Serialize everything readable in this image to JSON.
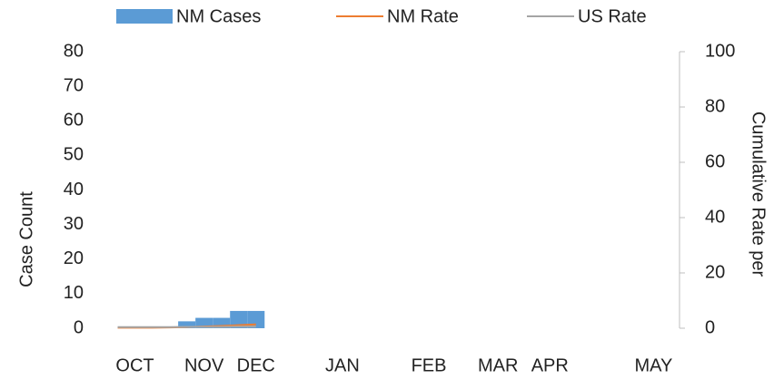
{
  "chart_data": {
    "type": "bar_line",
    "y_label": "Case Count",
    "y2_label": "Cumulative Rate per",
    "categories": [
      null,
      "OCT",
      null,
      null,
      null,
      "NOV",
      null,
      null,
      "DEC",
      null,
      null,
      null,
      null,
      "JAN",
      null,
      null,
      null,
      null,
      "FEB",
      null,
      null,
      null,
      "MAR",
      null,
      null,
      "APR",
      null,
      null,
      null,
      null,
      null,
      "MAY",
      null
    ],
    "series": [
      {
        "name": "NM Cases",
        "type": "bar",
        "color": "#5b9bd5",
        "values": [
          0,
          0,
          0,
          0,
          2,
          3,
          3,
          5,
          5,
          null,
          null,
          null,
          null,
          null,
          null,
          null,
          null,
          null,
          null,
          null,
          null,
          null,
          null,
          null,
          null,
          null,
          null,
          null,
          null,
          null,
          null,
          null,
          null
        ]
      },
      {
        "name": "NM Rate",
        "type": "line",
        "axis": "y2",
        "color": "#ed7d31",
        "values": [
          0.2,
          0.2,
          0.2,
          0.3,
          0.4,
          0.6,
          0.8,
          1.1,
          1.4,
          null,
          null,
          null,
          null,
          null,
          null,
          null,
          null,
          null,
          null,
          null,
          null,
          null,
          null,
          null,
          null,
          null,
          null,
          null,
          null,
          null,
          null,
          null,
          null
        ]
      },
      {
        "name": "US Rate",
        "type": "line",
        "axis": "y2",
        "color": "#a5a5a5",
        "values": [
          0.4,
          0.4,
          0.4,
          0.4,
          0.5,
          0.5,
          0.5,
          0.6,
          0.6,
          null,
          null,
          null,
          null,
          null,
          null,
          null,
          null,
          null,
          null,
          null,
          null,
          null,
          null,
          null,
          null,
          null,
          null,
          null,
          null,
          null,
          null,
          null,
          null
        ]
      }
    ],
    "ylim": [
      0,
      80
    ],
    "yticks": [
      0,
      10,
      20,
      30,
      40,
      50,
      60,
      70,
      80
    ],
    "y2lim": [
      0,
      100
    ],
    "y2ticks": [
      0,
      20,
      40,
      60,
      80,
      100
    ]
  }
}
